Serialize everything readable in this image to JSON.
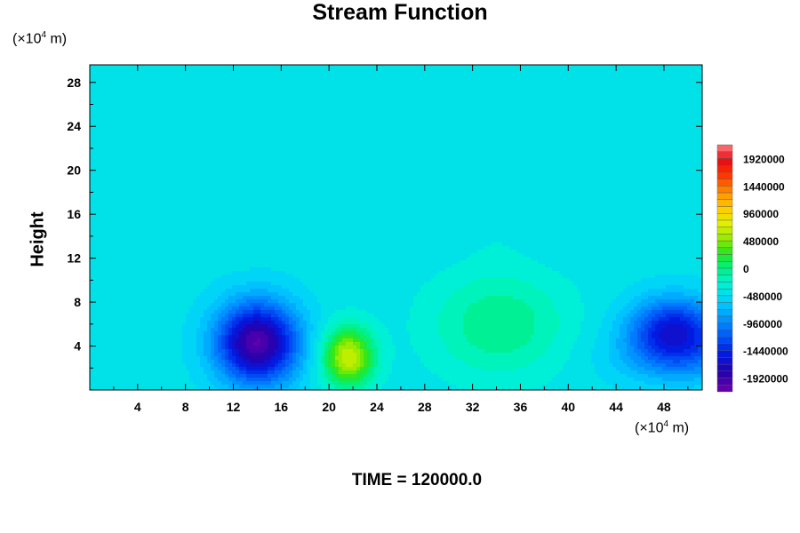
{
  "chart_data": {
    "type": "heatmap",
    "title": "Stream Function",
    "ylabel": "Height",
    "xlabel": "",
    "x_unit": {
      "prefix": "(×10",
      "exp": "4",
      "suffix": " m)"
    },
    "y_unit": {
      "prefix": "(×10",
      "exp": "4",
      "suffix": " m)"
    },
    "xlim": [
      0,
      51.2
    ],
    "ylim": [
      0,
      29.6
    ],
    "x_ticks": [
      4,
      8,
      12,
      16,
      20,
      24,
      28,
      32,
      36,
      40,
      44,
      48
    ],
    "y_ticks": [
      4,
      8,
      12,
      16,
      20,
      24,
      28
    ],
    "colorbar": {
      "min": -2160000,
      "max": 2160000,
      "step": 120000,
      "tick_labels": [
        "1920000",
        "1440000",
        "960000",
        "480000",
        "0",
        "-480000",
        "-960000",
        "-1440000",
        "-1920000"
      ],
      "tick_values": [
        1920000,
        1440000,
        960000,
        480000,
        0,
        -480000,
        -960000,
        -1440000,
        -1920000
      ]
    },
    "background_value": -430000,
    "features": [
      {
        "label": "negative vortex",
        "x": 14,
        "y": 4.3,
        "value": -1620000,
        "sx": 2.4,
        "sy": 2.6
      },
      {
        "label": "positive vortex",
        "x": 21.6,
        "y": 3.0,
        "value": 1150000,
        "sx": 1.5,
        "sy": 1.9
      },
      {
        "label": "positive region",
        "x": 34.2,
        "y": 6.0,
        "value": 420000,
        "sx": 4.0,
        "sy": 3.4
      },
      {
        "label": "negative vortex",
        "x": 48.8,
        "y": 5.6,
        "value": -1050000,
        "sx": 2.6,
        "sy": 2.0
      },
      {
        "label": "negative region",
        "x": 49.5,
        "y": 3.0,
        "value": -450000,
        "sx": 4.0,
        "sy": 1.8
      }
    ],
    "grid": false,
    "legend": "right"
  },
  "time_label": "TIME = 120000.0"
}
